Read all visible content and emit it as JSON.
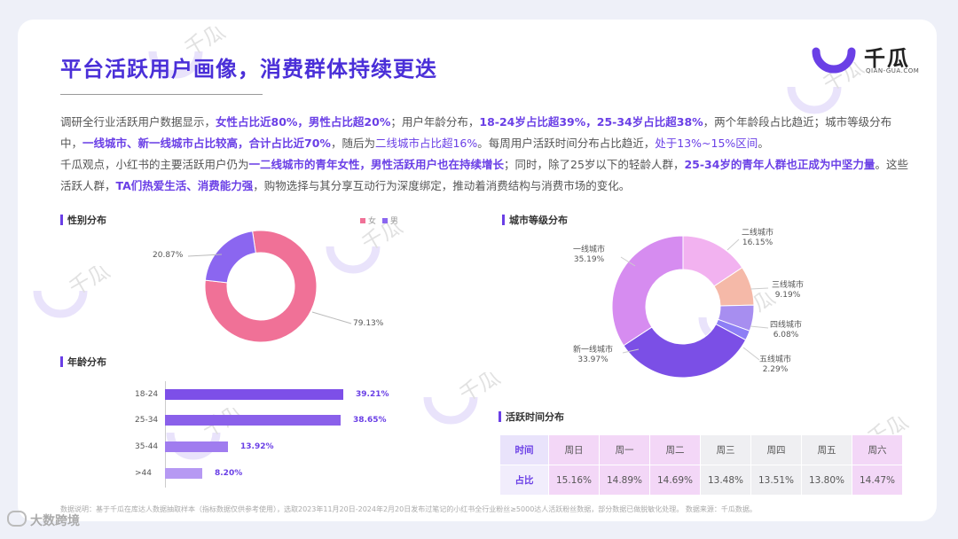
{
  "title": "平台活跃用户画像，消费群体持续更迭",
  "logo": {
    "name": "千瓜",
    "sub": "QIAN-GUA.COM"
  },
  "para1": {
    "s1": "调研全行业活跃用户数据显示，",
    "h1": "女性占比近80%，男性占比超20%",
    "s2": "；用户年龄分布，",
    "h2": "18-24岁占比超39%，25-34岁占比超38%",
    "s3": "，两个年龄段占比趋近；城市等级分布中，",
    "h3": "一线城市、新一线城市占比较高，合计占比近70%",
    "s4": "，随后为",
    "h4": "二线城市占比超16%",
    "s5": "。每周用户活跃时间分布占比趋近，",
    "h5": "处于13%~15%区间",
    "s6": "。"
  },
  "para2": {
    "s1": "千瓜观点，小红书的主要活跃用户仍为",
    "h1": "一二线城市的青年女性，男性活跃用户也在持续增长",
    "s2": "；同时，除了25岁以下的轻龄人群，",
    "h2": "25-34岁的青年人群也正成为中坚力量",
    "s3": "。这些活跃人群，",
    "h3": "TA们热爱生活、消费能力强",
    "s4": "，购物选择与其分享互动行为深度绑定，推动着消费结构与消费市场的变化。"
  },
  "sections": {
    "gender": "性别分布",
    "age": "年龄分布",
    "city": "城市等级分布",
    "time": "活跃时间分布"
  },
  "colors": {
    "female": "#f07197",
    "male": "#8b66f0",
    "accent": "#6a3fe6"
  },
  "chart_data": [
    {
      "type": "pie",
      "title": "性别分布",
      "donut": true,
      "legend": [
        "女",
        "男"
      ],
      "slices": [
        {
          "name": "女",
          "value": 79.13,
          "label": "79.13%",
          "color": "#f07197"
        },
        {
          "name": "男",
          "value": 20.87,
          "label": "20.87%",
          "color": "#8b66f0"
        }
      ]
    },
    {
      "type": "bar",
      "orientation": "horizontal",
      "title": "年龄分布",
      "categories": [
        "18-24",
        "25-34",
        "35-44",
        ">44"
      ],
      "values": [
        39.21,
        38.65,
        13.92,
        8.2
      ],
      "labels": [
        "39.21%",
        "38.65%",
        "13.92%",
        "8.20%"
      ]
    },
    {
      "type": "pie",
      "title": "城市等级分布",
      "donut": true,
      "slices": [
        {
          "name": "二线城市",
          "value": 16.15,
          "label": "16.15%",
          "color": "#f2b2f0"
        },
        {
          "name": "三线城市",
          "value": 9.19,
          "label": "9.19%",
          "color": "#f5b9a8"
        },
        {
          "name": "四线城市",
          "value": 6.08,
          "label": "6.08%",
          "color": "#a78ef0"
        },
        {
          "name": "五线城市",
          "value": 2.29,
          "label": "2.29%",
          "color": "#8d7ef5"
        },
        {
          "name": "新一线城市",
          "value": 33.97,
          "label": "33.97%",
          "color": "#7b4fe6"
        },
        {
          "name": "一线城市",
          "value": 35.19,
          "label": "35.19%",
          "color": "#d68cf0"
        }
      ]
    },
    {
      "type": "table",
      "title": "活跃时间分布",
      "header_label": "时间",
      "row_label": "占比",
      "columns": [
        "周日",
        "周一",
        "周二",
        "周三",
        "周四",
        "周五",
        "周六"
      ],
      "values": [
        "15.16%",
        "14.89%",
        "14.69%",
        "13.48%",
        "13.51%",
        "13.80%",
        "14.47%"
      ]
    }
  ],
  "footnote": "数据说明：基于千瓜在库达人数据抽取样本（指标数据仅供参考使用），选取2023年11月20日-2024年2月20日发布过笔记的小红书全行业粉丝≥5000达人活跃粉丝数据，部分数据已做脱敏化处理。  数据来源：千瓜数据。",
  "brand": "大数跨境"
}
